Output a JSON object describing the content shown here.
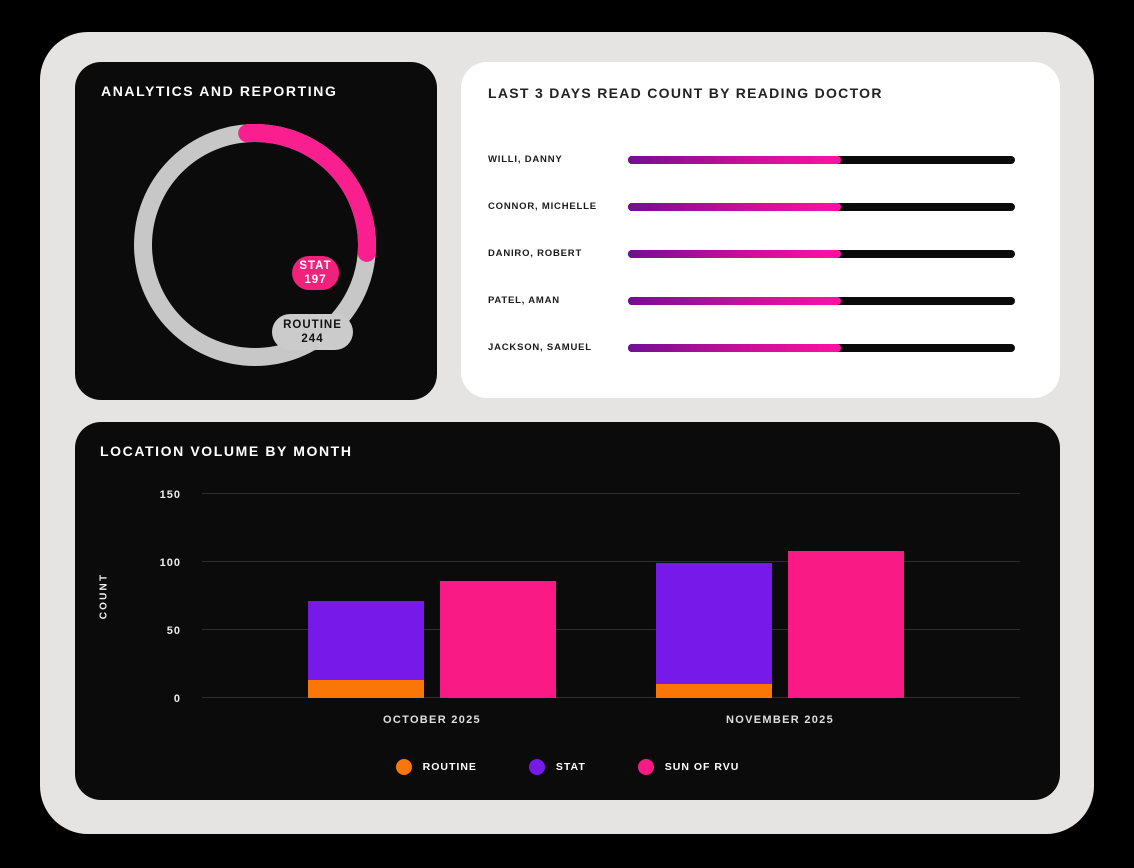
{
  "colors": {
    "page_bg": "#000000",
    "frame_bg": "#E5E4E2",
    "card_dark_bg": "#0B0B0B",
    "card_light_bg": "#FFFFFF",
    "pink": "#FA1A86",
    "donut_pink": "#FA1F8E",
    "pill_pink": "#F4217C",
    "ring_gray": "#C7C7C7",
    "pill_gray": "#CBCBCB",
    "orange": "#F97607",
    "purple": "#7719E9",
    "gridline": "#2F2F2F",
    "doctor_track": "#0A0A0A",
    "doctor_gradient_start": "#730F92",
    "doctor_gradient_mid": "#D01098",
    "doctor_gradient_end": "#FB12A3"
  },
  "chart_data": [
    {
      "type": "pie",
      "variant": "donut",
      "title": "ANALYTICS AND REPORTING",
      "labels": [
        "STAT",
        "ROUTINE"
      ],
      "values": [
        197,
        244
      ],
      "colors": [
        "#FA1F8E",
        "#C7C7C7"
      ],
      "arc_start_deg": -4,
      "arc_sweep_deg": 98,
      "legend_position": "center-pills"
    },
    {
      "type": "bar",
      "orientation": "horizontal",
      "title": "LAST 3 DAYS READ COUNT BY READING DOCTOR",
      "categories": [
        "WILLI, DANNY",
        "CONNOR, MICHELLE",
        "DANIRO, ROBERT",
        "PATEL, AMAN",
        "JACKSON, SAMUEL"
      ],
      "fill_pct": [
        55,
        55,
        55,
        55,
        55
      ],
      "xlabel": "",
      "ylabel": "",
      "grid": false
    },
    {
      "type": "bar",
      "title": "LOCATION VOLUME BY MONTH",
      "categories": [
        "OCTOBER 2025",
        "NOVEMBER 2025"
      ],
      "series": [
        {
          "name": "ROUTINE",
          "color": "#F97607",
          "stack": "a",
          "values": [
            13,
            10
          ]
        },
        {
          "name": "STAT",
          "color": "#7719E9",
          "stack": "a",
          "values": [
            58,
            89
          ]
        },
        {
          "name": "SUN OF RVU",
          "color": "#FA1A86",
          "stack": "b",
          "values": [
            86,
            108
          ]
        }
      ],
      "xlabel": "",
      "ylabel": "COUNT",
      "yticks": [
        0,
        50,
        100,
        150
      ],
      "ylim": [
        0,
        150
      ],
      "grid": true,
      "legend_position": "bottom"
    }
  ]
}
